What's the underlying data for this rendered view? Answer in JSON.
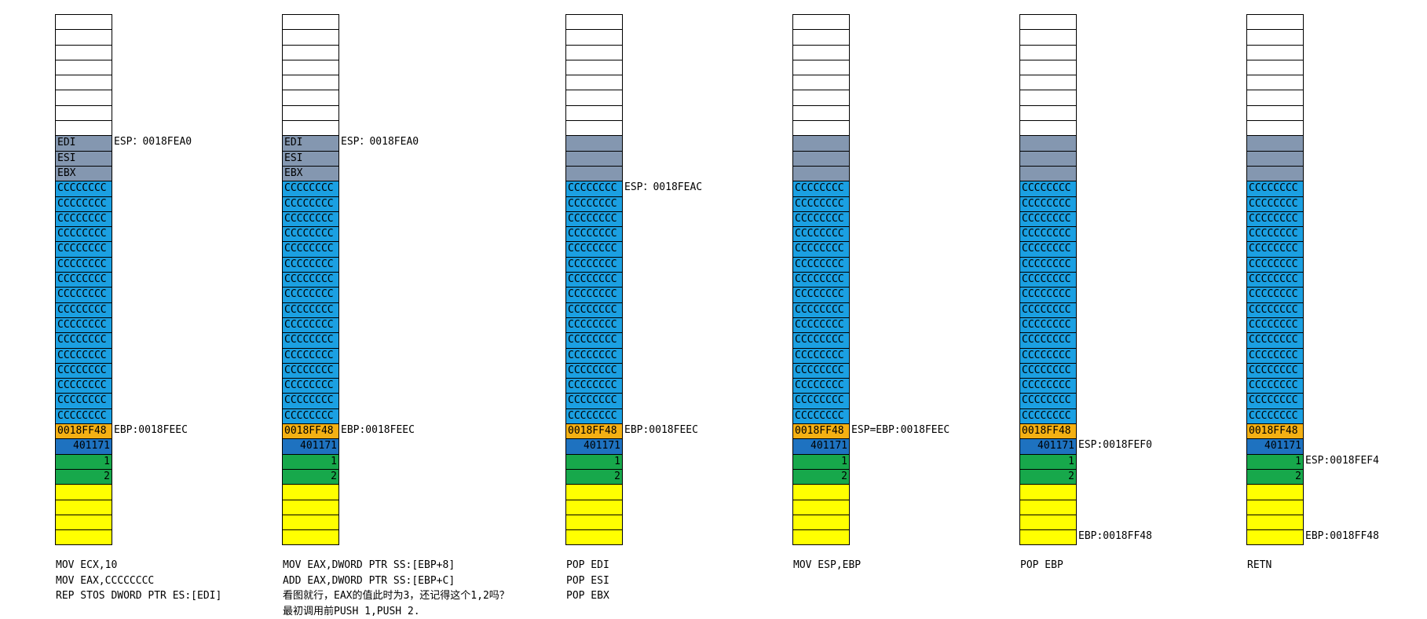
{
  "colors": {
    "empty": "#ffffff",
    "saved_register": "#8497b0",
    "buffer": "#1ba0e2",
    "saved_ebp": "#f4b013",
    "return_address": "#1e72c0",
    "argument": "#17a84b",
    "caller_frame": "#ffff00"
  },
  "columns": [
    {
      "cells": [
        "",
        "",
        "",
        "",
        "",
        "",
        "",
        "",
        "EDI",
        "ESI",
        "EBX",
        "CCCCCCCC",
        "CCCCCCCC",
        "CCCCCCCC",
        "CCCCCCCC",
        "CCCCCCCC",
        "CCCCCCCC",
        "CCCCCCCC",
        "CCCCCCCC",
        "CCCCCCCC",
        "CCCCCCCC",
        "CCCCCCCC",
        "CCCCCCCC",
        "CCCCCCCC",
        "CCCCCCCC",
        "CCCCCCCC",
        "CCCCCCCC",
        "0018FF48",
        "401171",
        "1",
        "2",
        "",
        "",
        "",
        ""
      ],
      "pointers": [
        {
          "text": "ESP：0018FEA0",
          "row": 8
        },
        {
          "text": "EBP:0018FEEC",
          "row": 27
        }
      ],
      "notes": [
        "MOV ECX,10",
        "MOV EAX,CCCCCCCC",
        "REP STOS DWORD PTR ES:[EDI]"
      ]
    },
    {
      "cells": [
        "",
        "",
        "",
        "",
        "",
        "",
        "",
        "",
        "EDI",
        "ESI",
        "EBX",
        "CCCCCCCC",
        "CCCCCCCC",
        "CCCCCCCC",
        "CCCCCCCC",
        "CCCCCCCC",
        "CCCCCCCC",
        "CCCCCCCC",
        "CCCCCCCC",
        "CCCCCCCC",
        "CCCCCCCC",
        "CCCCCCCC",
        "CCCCCCCC",
        "CCCCCCCC",
        "CCCCCCCC",
        "CCCCCCCC",
        "CCCCCCCC",
        "0018FF48",
        "401171",
        "1",
        "2",
        "",
        "",
        "",
        ""
      ],
      "pointers": [
        {
          "text": "ESP：0018FEA0",
          "row": 8
        },
        {
          "text": "EBP:0018FEEC",
          "row": 27
        }
      ],
      "notes": [
        "MOV EAX,DWORD PTR SS:[EBP+8]",
        "ADD EAX,DWORD PTR SS:[EBP+C]",
        "看图就行，EAX的值此时为3，还记得这个1,2吗？",
        "最初调用前PUSH 1,PUSH 2."
      ]
    },
    {
      "cells": [
        "",
        "",
        "",
        "",
        "",
        "",
        "",
        "",
        "",
        "",
        "",
        "CCCCCCCC",
        "CCCCCCCC",
        "CCCCCCCC",
        "CCCCCCCC",
        "CCCCCCCC",
        "CCCCCCCC",
        "CCCCCCCC",
        "CCCCCCCC",
        "CCCCCCCC",
        "CCCCCCCC",
        "CCCCCCCC",
        "CCCCCCCC",
        "CCCCCCCC",
        "CCCCCCCC",
        "CCCCCCCC",
        "CCCCCCCC",
        "0018FF48",
        "401171",
        "1",
        "2",
        "",
        "",
        "",
        ""
      ],
      "pointers": [
        {
          "text": "ESP：0018FEAC",
          "row": 11
        },
        {
          "text": "EBP:0018FEEC",
          "row": 27
        }
      ],
      "notes": [
        "POP EDI",
        "POP ESI",
        "POP EBX"
      ]
    },
    {
      "cells": [
        "",
        "",
        "",
        "",
        "",
        "",
        "",
        "",
        "",
        "",
        "",
        "CCCCCCCC",
        "CCCCCCCC",
        "CCCCCCCC",
        "CCCCCCCC",
        "CCCCCCCC",
        "CCCCCCCC",
        "CCCCCCCC",
        "CCCCCCCC",
        "CCCCCCCC",
        "CCCCCCCC",
        "CCCCCCCC",
        "CCCCCCCC",
        "CCCCCCCC",
        "CCCCCCCC",
        "CCCCCCCC",
        "CCCCCCCC",
        "0018FF48",
        "401171",
        "1",
        "2",
        "",
        "",
        "",
        ""
      ],
      "pointers": [
        {
          "text": "ESP=EBP:0018FEEC",
          "row": 27
        }
      ],
      "notes": [
        "MOV ESP,EBP"
      ]
    },
    {
      "cells": [
        "",
        "",
        "",
        "",
        "",
        "",
        "",
        "",
        "",
        "",
        "",
        "CCCCCCCC",
        "CCCCCCCC",
        "CCCCCCCC",
        "CCCCCCCC",
        "CCCCCCCC",
        "CCCCCCCC",
        "CCCCCCCC",
        "CCCCCCCC",
        "CCCCCCCC",
        "CCCCCCCC",
        "CCCCCCCC",
        "CCCCCCCC",
        "CCCCCCCC",
        "CCCCCCCC",
        "CCCCCCCC",
        "CCCCCCCC",
        "0018FF48",
        "401171",
        "1",
        "2",
        "",
        "",
        "",
        ""
      ],
      "pointers": [
        {
          "text": "ESP:0018FEF0",
          "row": 28
        },
        {
          "text": "EBP:0018FF48",
          "row": 34
        }
      ],
      "notes": [
        "POP EBP"
      ]
    },
    {
      "cells": [
        "",
        "",
        "",
        "",
        "",
        "",
        "",
        "",
        "",
        "",
        "",
        "CCCCCCCC",
        "CCCCCCCC",
        "CCCCCCCC",
        "CCCCCCCC",
        "CCCCCCCC",
        "CCCCCCCC",
        "CCCCCCCC",
        "CCCCCCCC",
        "CCCCCCCC",
        "CCCCCCCC",
        "CCCCCCCC",
        "CCCCCCCC",
        "CCCCCCCC",
        "CCCCCCCC",
        "CCCCCCCC",
        "CCCCCCCC",
        "0018FF48",
        "401171",
        "1",
        "2",
        "",
        "",
        "",
        ""
      ],
      "pointers": [
        {
          "text": "ESP:0018FEF4",
          "row": 29
        },
        {
          "text": "EBP:0018FF48",
          "row": 34
        }
      ],
      "notes": [
        "RETN"
      ]
    }
  ]
}
